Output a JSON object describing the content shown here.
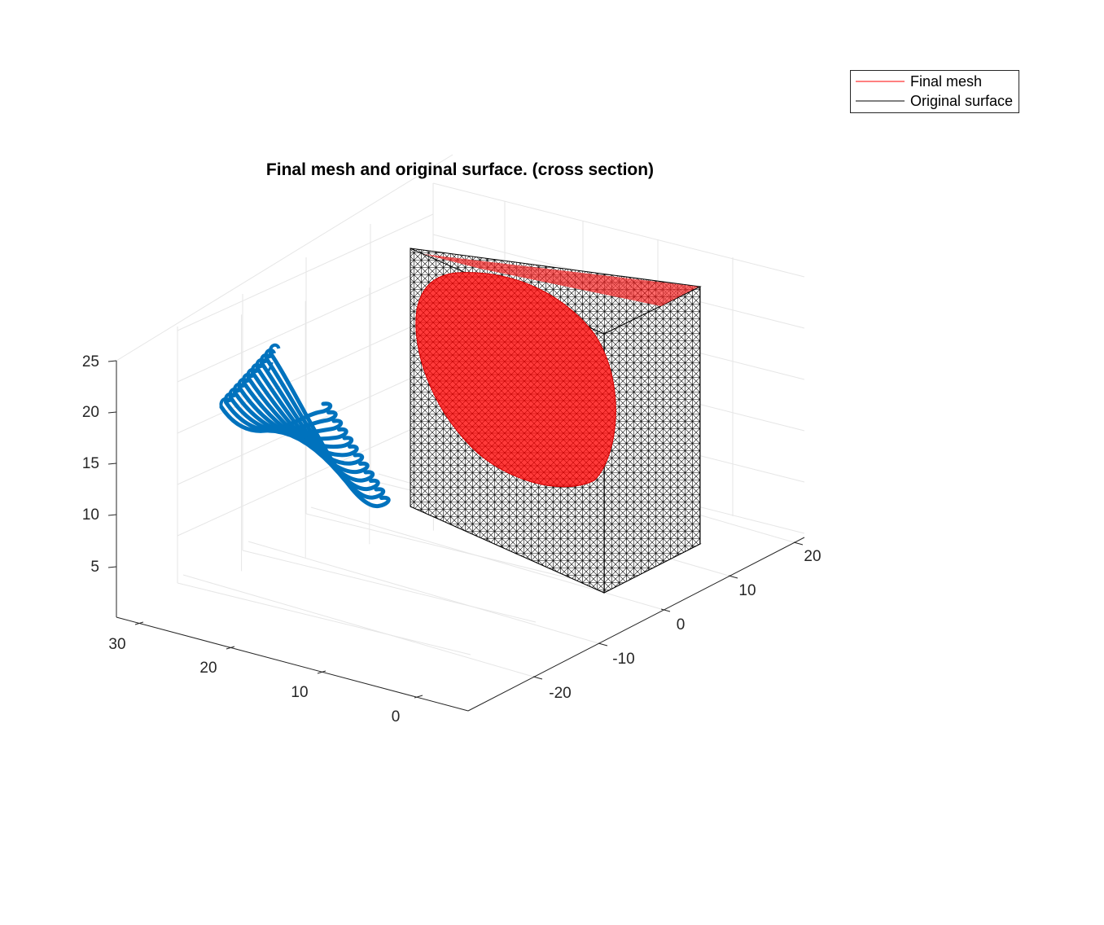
{
  "chart_data": {
    "type": "3d-mesh",
    "title": "Final mesh and original surface. (cross section)",
    "legend": {
      "placement": "top-right",
      "entries": [
        {
          "label": "Final mesh",
          "color": "#ff0000"
        },
        {
          "label": "Original surface",
          "color": "#000000"
        }
      ]
    },
    "axes": {
      "x": {
        "ticks": [
          30,
          20,
          10,
          0
        ],
        "labels": [
          "30",
          "20",
          "10",
          "0"
        ]
      },
      "y": {
        "ticks": [
          -20,
          -10,
          0,
          10,
          20
        ],
        "labels": [
          "-20",
          "-10",
          "0",
          "10",
          "20"
        ]
      },
      "z": {
        "ticks": [
          5,
          10,
          15,
          20,
          25
        ],
        "labels": [
          "5",
          "10",
          "15",
          "20",
          "25"
        ]
      },
      "grid": true
    },
    "series": [
      {
        "name": "Final mesh",
        "color": "#ff0000"
      },
      {
        "name": "Original surface",
        "color": "#000000"
      },
      {
        "color": "#0072bd",
        "description_count": 12
      }
    ]
  }
}
